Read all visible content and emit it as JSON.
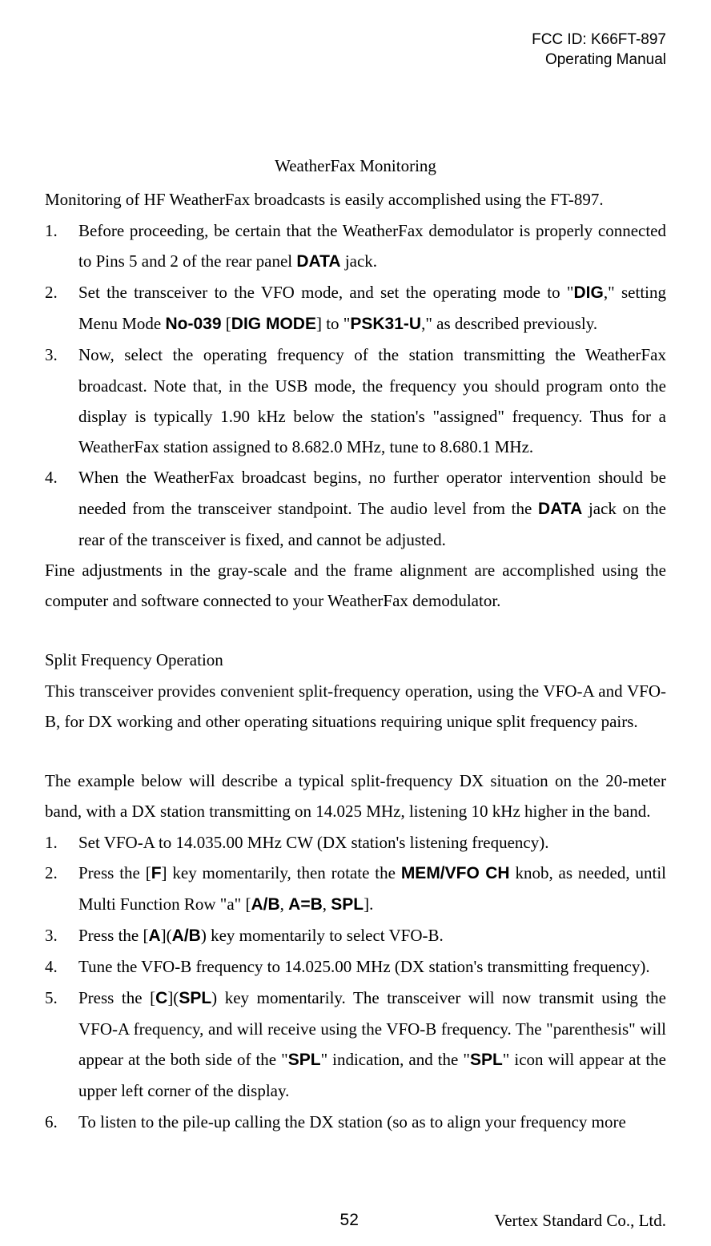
{
  "header": {
    "fcc": "FCC ID: K66FT-897",
    "manual": "Operating Manual"
  },
  "section1": {
    "title": "WeatherFax Monitoring",
    "intro": "Monitoring of HF WeatherFax broadcasts is easily accomplished using the FT-897.",
    "items": [
      {
        "num": "1.",
        "pre": "Before proceeding, be certain that the WeatherFax demodulator is properly connected to Pins 5 and 2 of the rear panel ",
        "b1": "DATA",
        "post": " jack."
      },
      {
        "num": "2.",
        "p1": "Set the transceiver to the VFO mode, and set the operating mode to \"",
        "b1": "DIG",
        "p2": ",\" setting Menu Mode ",
        "b2": "No-039",
        "p3": " [",
        "b3": "DIG MODE",
        "p4": "] to \"",
        "b4": "PSK31-U",
        "p5": ",\" as described previously."
      },
      {
        "num": "3.",
        "text": "Now, select the operating frequency of the station transmitting the WeatherFax broadcast. Note that, in the USB mode, the frequency you should program onto the display is typically 1.90 kHz below the station's \"assigned\" frequency. Thus for a WeatherFax station assigned to 8.682.0 MHz, tune to 8.680.1 MHz."
      },
      {
        "num": "4.",
        "p1": "When the WeatherFax broadcast begins, no further operator intervention should be needed from the transceiver standpoint. The audio level from the ",
        "b1": "DATA",
        "p2": " jack on the rear of the transceiver is fixed, and cannot be adjusted."
      }
    ],
    "outro": "Fine adjustments in the gray-scale and the frame alignment are accomplished using the computer and software connected to your WeatherFax demodulator."
  },
  "section2": {
    "title": "Split Frequency Operation",
    "intro": "This transceiver provides convenient split-frequency operation, using the VFO-A and VFO-B, for DX working and other operating situations requiring unique split frequency pairs.",
    "example": "The example below will describe a typical split-frequency DX situation on the 20-meter band, with a DX station transmitting on 14.025 MHz, listening 10 kHz higher in the band.",
    "items": [
      {
        "num": "1.",
        "text": "Set VFO-A to 14.035.00 MHz CW (DX station's listening frequency)."
      },
      {
        "num": "2.",
        "p1": "Press the [",
        "b1": "F",
        "p2": "] key momentarily, then rotate the ",
        "b2": "MEM/VFO CH",
        "p3": " knob, as needed, until Multi Function Row \"a\" [",
        "b3": "A/B",
        "p4": ", ",
        "b4": "A=B",
        "p5": ", ",
        "b5": "SPL",
        "p6": "]."
      },
      {
        "num": "3.",
        "p1": "Press the [",
        "b1": "A",
        "p2": "](",
        "b2": "A/B",
        "p3": ") key momentarily to select VFO-B."
      },
      {
        "num": "4.",
        "text": "Tune the VFO-B frequency to 14.025.00 MHz (DX station's transmitting frequency)."
      },
      {
        "num": "5.",
        "p1": "Press the [",
        "b1": "C",
        "p2": "](",
        "b2": "SPL",
        "p3": ") key momentarily. The transceiver will now transmit using the VFO-A frequency, and will receive using the VFO-B frequency. The \"parenthesis\" will appear at the both side of the \"",
        "b3": "SPL",
        "p4": "\" indication, and the \"",
        "b4": "SPL",
        "p5": "\" icon will appear at the upper left corner of the display."
      },
      {
        "num": "6.",
        "text": "To listen to the pile-up calling the DX station (so as to align your frequency more"
      }
    ]
  },
  "footer": {
    "page": "52",
    "company": "Vertex Standard Co., Ltd."
  }
}
